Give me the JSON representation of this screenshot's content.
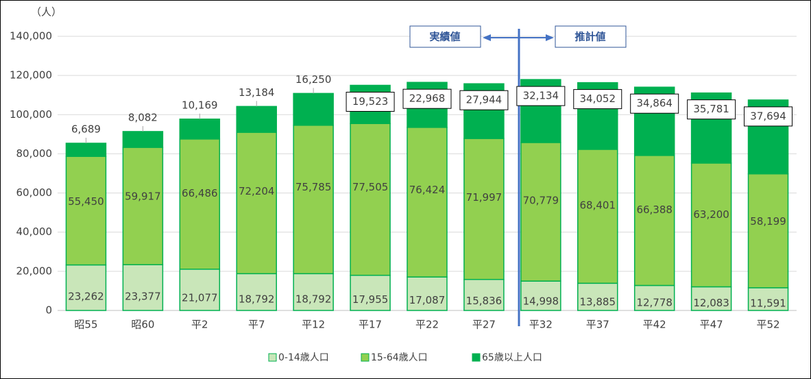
{
  "chart_data": {
    "type": "stacked_bar",
    "y_unit_label": "（人）",
    "annotations": [
      "実績値",
      "推計値"
    ],
    "categories": [
      "昭55",
      "昭60",
      "平2",
      "平7",
      "平12",
      "平17",
      "平22",
      "平27",
      "平32",
      "平37",
      "平42",
      "平47",
      "平52"
    ],
    "series": [
      {
        "name": "0-14歳人口",
        "color": "#c9e6b9",
        "values": [
          23262,
          23377,
          21077,
          18792,
          18792,
          17955,
          17087,
          15836,
          14998,
          13885,
          12778,
          12083,
          11591
        ],
        "value_labels": [
          "23,262",
          "23,377",
          "21,077",
          "18,792",
          "18,792",
          "17,955",
          "17,087",
          "15,836",
          "14,998",
          "13,885",
          "12,778",
          "12,083",
          "11,591"
        ]
      },
      {
        "name": "15-64歳人口",
        "color": "#92d050",
        "values": [
          55450,
          59917,
          66486,
          72204,
          75785,
          77505,
          76424,
          71997,
          70779,
          68401,
          66388,
          63200,
          58199
        ],
        "value_labels": [
          "55,450",
          "59,917",
          "66,486",
          "72,204",
          "75,785",
          "77,505",
          "76,424",
          "71,997",
          "70,779",
          "68,401",
          "66,388",
          "63,200",
          "58,199"
        ]
      },
      {
        "name": "65歳以上人口",
        "color": "#00b050",
        "values": [
          6689,
          8082,
          10169,
          13184,
          16250,
          19523,
          22968,
          27944,
          32134,
          34052,
          34864,
          35781,
          37694
        ],
        "value_labels": [
          "6,689",
          "8,082",
          "10,169",
          "13,184",
          "16,250",
          "19,523",
          "22,968",
          "27,944",
          "32,134",
          "34,052",
          "34,864",
          "35,781",
          "37,694"
        ]
      }
    ],
    "ylim": [
      0,
      140000
    ],
    "yticks": [
      0,
      {
        "value": 20000,
        "label": "20,000"
      },
      {
        "value": 40000,
        "label": "40,000"
      },
      {
        "value": 60000,
        "label": "60,000"
      },
      {
        "value": 80000,
        "label": "80,000"
      },
      {
        "value": 100000,
        "label": "100,000"
      },
      {
        "value": 120000,
        "label": "120,000"
      },
      {
        "value": 140000,
        "label": "140,000"
      }
    ],
    "grid": true,
    "legend": "bottom"
  }
}
